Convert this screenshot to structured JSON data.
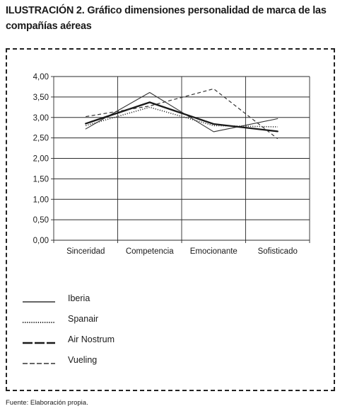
{
  "figure": {
    "caption": "ILUSTRACIÓN 2. Gráfico dimensiones personalidad de marca de las compañías aéreas",
    "source": "Fuente: Elaboración propia."
  },
  "chart_data": {
    "type": "line",
    "title": "",
    "xlabel": "",
    "ylabel": "",
    "categories": [
      "Sinceridad",
      "Competencia",
      "Emocionante",
      "Sofisticado"
    ],
    "ylim": [
      0,
      4
    ],
    "yticks": [
      0,
      0.5,
      1,
      1.5,
      2,
      2.5,
      3,
      3.5,
      4
    ],
    "ytick_labels": [
      "0,00",
      "0,50",
      "1,00",
      "1,50",
      "2,00",
      "2,50",
      "3,00",
      "3,50",
      "4,00"
    ],
    "grid": true,
    "legend_position": "bottom-left",
    "series": [
      {
        "name": "Iberia",
        "values": [
          2.72,
          3.61,
          2.65,
          2.97
        ],
        "style": "solid-thin",
        "color": "#333333"
      },
      {
        "name": "Spanair",
        "values": [
          2.8,
          3.25,
          2.8,
          2.77
        ],
        "style": "dotted",
        "color": "#333333"
      },
      {
        "name": "Air Nostrum",
        "values": [
          2.85,
          3.37,
          2.84,
          2.66
        ],
        "style": "solid-thick",
        "color": "#1a1a1a"
      },
      {
        "name": "Vueling",
        "values": [
          3.02,
          3.28,
          3.7,
          2.48
        ],
        "style": "dashed",
        "color": "#333333"
      }
    ]
  }
}
